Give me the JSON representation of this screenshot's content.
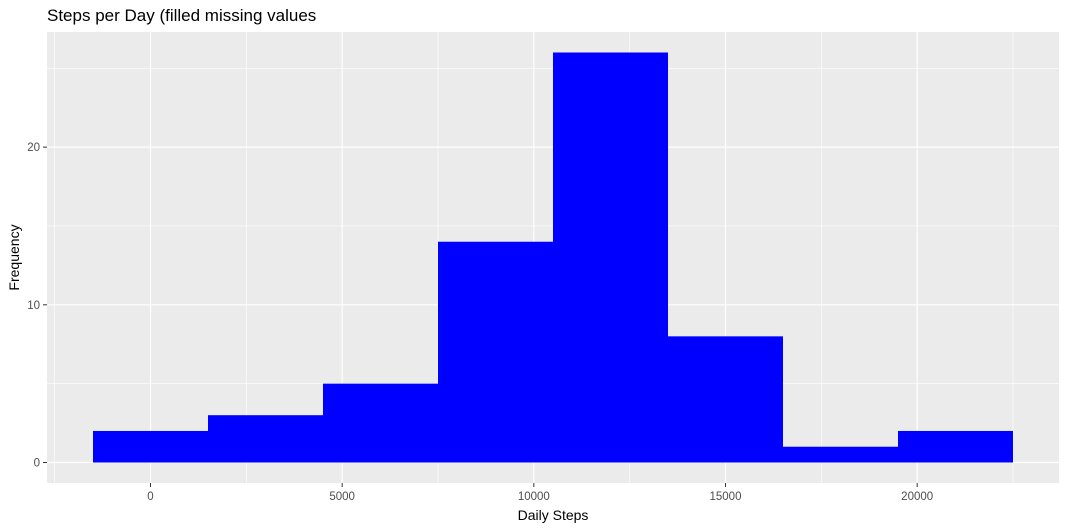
{
  "chart_data": {
    "type": "bar",
    "title": "Steps per Day (filled missing values",
    "xlabel": "Daily Steps",
    "ylabel": "Frequency",
    "bins": [
      {
        "start": -1500,
        "end": 1500,
        "count": 2
      },
      {
        "start": 1500,
        "end": 4500,
        "count": 3
      },
      {
        "start": 4500,
        "end": 7500,
        "count": 5
      },
      {
        "start": 7500,
        "end": 10500,
        "count": 14
      },
      {
        "start": 10500,
        "end": 13500,
        "count": 26
      },
      {
        "start": 13500,
        "end": 16500,
        "count": 8
      },
      {
        "start": 16500,
        "end": 19500,
        "count": 1
      },
      {
        "start": 19500,
        "end": 22500,
        "count": 2
      }
    ],
    "xlim": [
      -2700,
      23700
    ],
    "ylim": [
      -1.3,
      27.3
    ],
    "x_ticks": [
      0,
      5000,
      10000,
      15000,
      20000
    ],
    "x_tick_labels": [
      "0",
      "5000",
      "10000",
      "15000",
      "20000"
    ],
    "x_minor_ticks": [
      -2500,
      2500,
      7500,
      12500,
      17500,
      22500
    ],
    "y_ticks": [
      0,
      10,
      20
    ],
    "y_tick_labels": [
      "0",
      "10",
      "20"
    ],
    "y_minor_ticks": [
      5,
      15,
      25
    ],
    "bar_color": "#0000FF",
    "panel_background": "#EBEBEB",
    "grid": true,
    "legend": "none"
  }
}
